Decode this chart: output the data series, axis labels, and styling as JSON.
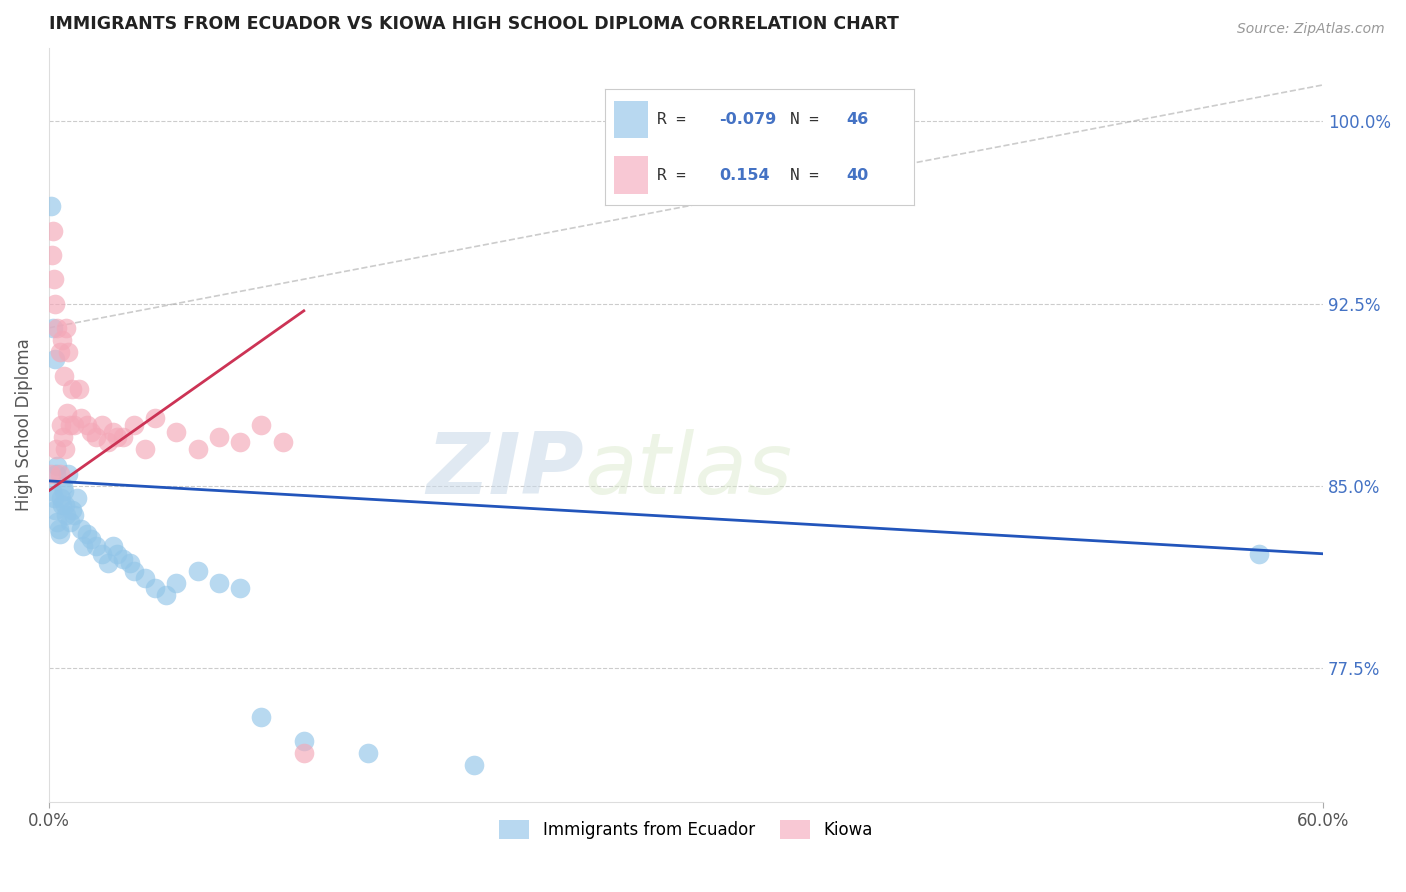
{
  "title": "IMMIGRANTS FROM ECUADOR VS KIOWA HIGH SCHOOL DIPLOMA CORRELATION CHART",
  "source": "Source: ZipAtlas.com",
  "ylabel": "High School Diploma",
  "ytick_labels": [
    "77.5%",
    "85.0%",
    "92.5%",
    "100.0%"
  ],
  "ytick_values": [
    77.5,
    85.0,
    92.5,
    100.0
  ],
  "xmin": 0.0,
  "xmax": 60.0,
  "ymin": 72.0,
  "ymax": 103.0,
  "watermark_zip": "ZIP",
  "watermark_atlas": "atlas",
  "blue_color": "#92C5E8",
  "pink_color": "#F4A8B8",
  "blue_line_color": "#2255BB",
  "pink_line_color": "#CC3355",
  "legend_blue_color": "#B8D8F0",
  "legend_pink_color": "#F8C8D4",
  "r1_val": "-0.079",
  "n1_val": "46",
  "r2_val": "0.154",
  "n2_val": "40",
  "blue_scatter_x": [
    0.1,
    0.15,
    0.2,
    0.25,
    0.3,
    0.3,
    0.35,
    0.4,
    0.4,
    0.45,
    0.5,
    0.55,
    0.6,
    0.65,
    0.7,
    0.75,
    0.8,
    0.9,
    1.0,
    1.1,
    1.2,
    1.3,
    1.5,
    1.6,
    1.8,
    2.0,
    2.2,
    2.5,
    2.8,
    3.0,
    3.2,
    3.5,
    3.8,
    4.0,
    4.5,
    5.0,
    5.5,
    6.0,
    7.0,
    8.0,
    9.0,
    10.0,
    12.0,
    15.0,
    20.0,
    57.0
  ],
  "blue_scatter_y": [
    96.5,
    84.8,
    91.5,
    84.5,
    90.2,
    84.0,
    85.5,
    83.5,
    85.8,
    83.2,
    83.0,
    84.5,
    84.2,
    85.0,
    84.8,
    84.2,
    83.8,
    85.5,
    83.5,
    84.0,
    83.8,
    84.5,
    83.2,
    82.5,
    83.0,
    82.8,
    82.5,
    82.2,
    81.8,
    82.5,
    82.2,
    82.0,
    81.8,
    81.5,
    81.2,
    80.8,
    80.5,
    81.0,
    81.5,
    81.0,
    80.8,
    75.5,
    74.5,
    74.0,
    73.5,
    82.2
  ],
  "pink_scatter_x": [
    0.1,
    0.15,
    0.2,
    0.25,
    0.3,
    0.35,
    0.4,
    0.5,
    0.55,
    0.6,
    0.65,
    0.7,
    0.75,
    0.8,
    0.85,
    0.9,
    1.0,
    1.1,
    1.2,
    1.4,
    1.5,
    1.8,
    2.0,
    2.2,
    2.5,
    2.8,
    3.0,
    3.5,
    4.0,
    4.5,
    5.0,
    6.0,
    7.0,
    8.0,
    9.0,
    10.0,
    11.0,
    12.0,
    3.2,
    0.5
  ],
  "pink_scatter_y": [
    85.5,
    94.5,
    95.5,
    93.5,
    92.5,
    86.5,
    91.5,
    90.5,
    87.5,
    91.0,
    87.0,
    89.5,
    86.5,
    91.5,
    88.0,
    90.5,
    87.5,
    89.0,
    87.5,
    89.0,
    87.8,
    87.5,
    87.2,
    87.0,
    87.5,
    86.8,
    87.2,
    87.0,
    87.5,
    86.5,
    87.8,
    87.2,
    86.5,
    87.0,
    86.8,
    87.5,
    86.8,
    74.0,
    87.0,
    85.5
  ],
  "dashed_line_x": [
    0.0,
    60.0
  ],
  "dashed_line_y": [
    91.5,
    101.5
  ],
  "blue_trend_x": [
    0.0,
    60.0
  ],
  "blue_trend_y": [
    85.2,
    82.2
  ],
  "pink_trend_x": [
    0.0,
    12.0
  ],
  "pink_trend_y": [
    84.8,
    92.2
  ]
}
